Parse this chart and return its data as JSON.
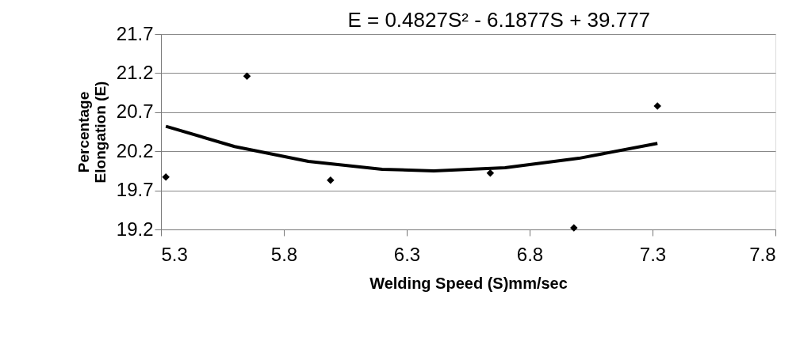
{
  "chart_data": {
    "type": "scatter",
    "xlabel": "Welding Speed (S)mm/sec",
    "ylabel": "Percentage\nElongation (E)",
    "annotations": [
      "E = 0.4827S² - 6.1877S + 39.777"
    ],
    "series": [
      {
        "color": "#000000",
        "marker": "diamond",
        "x": [
          5.32,
          5.65,
          5.99,
          6.64,
          6.98,
          7.32
        ],
        "values": [
          19.87,
          21.16,
          19.83,
          19.92,
          19.22,
          20.78
        ]
      },
      {
        "type": "line",
        "color": "#000000",
        "marker": "none",
        "line_style": "solid",
        "x": [
          5.32,
          5.6,
          5.9,
          6.2,
          6.41,
          6.7,
          7.0,
          7.32
        ],
        "values": [
          20.52,
          20.26,
          20.07,
          19.97,
          19.95,
          19.99,
          20.11,
          20.3
        ]
      }
    ],
    "xlim": [
      5.3,
      7.8
    ],
    "xticks": [
      5.3,
      5.8,
      6.3,
      6.8,
      7.3,
      7.8
    ],
    "ylim": [
      19.2,
      21.7
    ],
    "yticks": [
      19.2,
      19.7,
      20.2,
      20.7,
      21.2,
      21.7
    ],
    "grid": "y"
  }
}
